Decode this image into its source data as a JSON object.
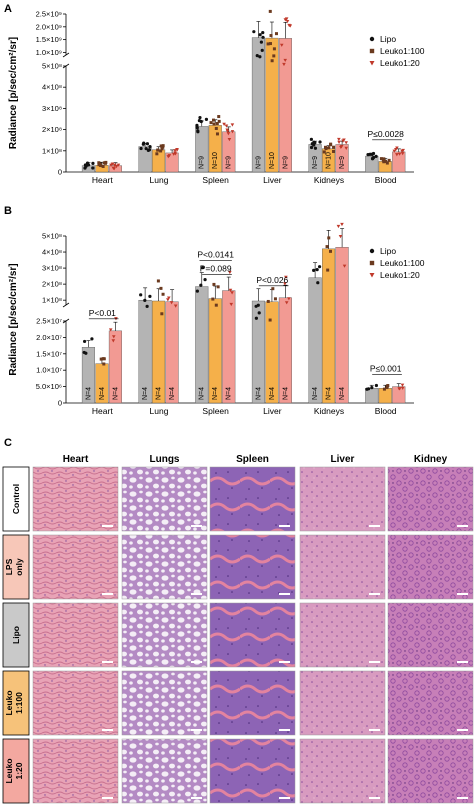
{
  "panels": {
    "a": "A",
    "b": "B",
    "c": "C"
  },
  "colors": {
    "lipo_bar": "#b4b4b4",
    "lipo_dot": "#111111",
    "l100_bar": "#f5b04a",
    "l100_dot": "#6b3a1f",
    "l20_bar": "#f29a93",
    "l20_dot": "#c0392b"
  },
  "chart_data": [
    {
      "id": "A",
      "type": "bar",
      "ylabel": "Radiance [p/sec/cm²/sr]",
      "categories": [
        "Heart",
        "Lung",
        "Spleen",
        "Liver",
        "Kidneys",
        "Blood"
      ],
      "series": [
        {
          "name": "Lipo",
          "values": [
            30000000,
            120000000,
            215000000,
            1580000000,
            130000000,
            75000000
          ]
        },
        {
          "name": "Leuko1:100",
          "values": [
            32000000,
            105000000,
            220000000,
            1560000000,
            110000000,
            50000000
          ]
        },
        {
          "name": "Leuko1:20",
          "values": [
            30000000,
            90000000,
            190000000,
            1550000000,
            130000000,
            95000000
          ]
        }
      ],
      "n_labels": [
        [
          "",
          "",
          ""
        ],
        [
          "",
          "",
          ""
        ],
        [
          "N=9",
          "N=10",
          "N=9"
        ],
        [
          "N=9",
          "N=10",
          "N=9"
        ],
        [
          "N=9",
          "N=10",
          "N=9"
        ],
        [
          "",
          "",
          ""
        ]
      ],
      "axis_lower": {
        "ticks": [
          "0",
          "1×10⁸",
          "2×10⁸",
          "3×10⁸",
          "4×10⁸",
          "5×10⁸"
        ],
        "values": [
          0,
          100000000,
          200000000,
          300000000,
          400000000,
          500000000
        ],
        "ylim": [
          0,
          500000000
        ]
      },
      "axis_upper": {
        "ticks": [
          "1.0×10⁹",
          "1.5×10⁹",
          "2.0×10⁹",
          "2.5×10⁹"
        ],
        "values": [
          1000000000,
          1500000000,
          2000000000,
          2500000000
        ],
        "ylim": [
          900000000,
          2500000000
        ]
      },
      "annotations": [
        {
          "text": "P≤0.0028",
          "category": "Blood"
        }
      ]
    },
    {
      "id": "B",
      "type": "bar",
      "ylabel": "Radiance [p/sec/cm²/sr]",
      "categories": [
        "Heart",
        "Lung",
        "Spleen",
        "Liver",
        "Kidneys",
        "Blood"
      ],
      "series": [
        {
          "name": "Lipo",
          "values": [
            17000000,
            100000000,
            185000000,
            95000000,
            240000000,
            4500000
          ]
        },
        {
          "name": "Leuko1:100",
          "values": [
            12000000,
            95000000,
            110000000,
            90000000,
            420000000,
            4500000
          ]
        },
        {
          "name": "Leuko1:20",
          "values": [
            22000000,
            90000000,
            160000000,
            115000000,
            430000000,
            5000000
          ]
        }
      ],
      "n_labels": [
        [
          "N=4",
          "N=4",
          "N=4"
        ],
        [
          "N=4",
          "N=4",
          "N=4"
        ],
        [
          "N=4",
          "N=4",
          "N=4"
        ],
        [
          "N=4",
          "N=4",
          "N=4"
        ],
        [
          "N=4",
          "N=4",
          "N=4"
        ],
        [
          "",
          "",
          ""
        ]
      ],
      "axis_lower": {
        "ticks": [
          "0",
          "5.0×10⁶",
          "1.0×10⁷",
          "1.5×10⁷",
          "2.0×10⁷",
          "2.5×10⁷"
        ],
        "values": [
          0,
          5000000,
          10000000,
          15000000,
          20000000,
          25000000
        ],
        "ylim": [
          0,
          25000000
        ]
      },
      "axis_upper": {
        "ticks": [
          "1×10⁸",
          "2×10⁸",
          "3×10⁸",
          "4×10⁸",
          "5×10⁸"
        ],
        "values": [
          100000000,
          200000000,
          300000000,
          400000000,
          500000000
        ],
        "ylim": [
          70000000,
          500000000
        ]
      },
      "annotations": [
        {
          "text": "P<0.01",
          "category": "Heart"
        },
        {
          "text": "P=0.089",
          "category": "Spleen"
        },
        {
          "text": "P<0.0141",
          "category": "Spleen"
        },
        {
          "text": "P<0.026",
          "category": "Liver"
        },
        {
          "text": "P≤0.001",
          "category": "Blood"
        }
      ]
    }
  ],
  "legend": [
    "Lipo",
    "Leuko1:100",
    "Leuko1:20"
  ],
  "histology": {
    "columns": [
      "Heart",
      "Lungs",
      "Spleen",
      "Liver",
      "Kidney"
    ],
    "rows": [
      {
        "label_lines": [
          "Control"
        ],
        "color": "#ffffff"
      },
      {
        "label_lines": [
          "LPS",
          "only"
        ],
        "color": "#f7c7b8"
      },
      {
        "label_lines": [
          "Lipo"
        ],
        "color": "#c9c9c9"
      },
      {
        "label_lines": [
          "Leuko",
          "1:100"
        ],
        "color": "#f6c27a"
      },
      {
        "label_lines": [
          "Leuko",
          "1:20"
        ],
        "color": "#f3a8a0"
      }
    ]
  }
}
